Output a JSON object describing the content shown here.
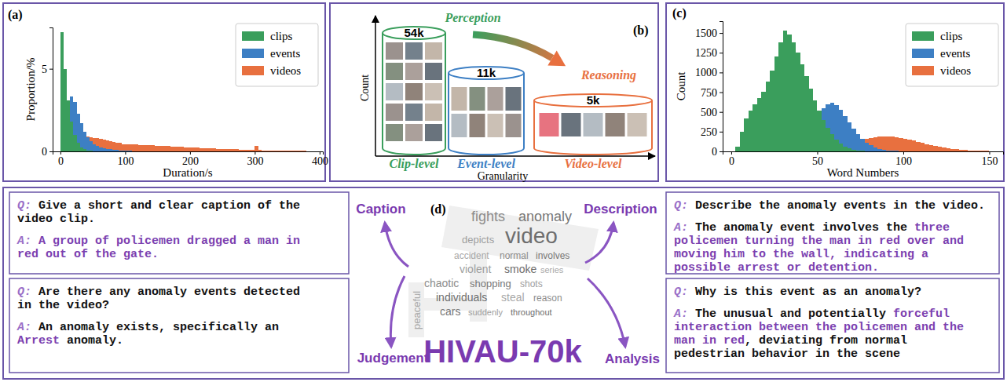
{
  "chart_data": [
    {
      "type": "histogram",
      "title": "(a)",
      "x_label": "Duration/s",
      "y_label": "Proportion/%",
      "bins": [
        0,
        5,
        10,
        15,
        20,
        25,
        30,
        35,
        40,
        45,
        50,
        55,
        60,
        65,
        70,
        75,
        80,
        85,
        90,
        95,
        100,
        105,
        110,
        115,
        120,
        125,
        130,
        135,
        140,
        145,
        150,
        155,
        160,
        165,
        170,
        175,
        180,
        185,
        190,
        195,
        200,
        205,
        210,
        215,
        220,
        225,
        230,
        235,
        240,
        245,
        250,
        255,
        260,
        265,
        270,
        275,
        280,
        285,
        290,
        295,
        300,
        305,
        310,
        315,
        320,
        325,
        330,
        335,
        340,
        345,
        350,
        355,
        360,
        365,
        370,
        375,
        380,
        385,
        390,
        395,
        400
      ],
      "series": [
        {
          "name": "clips",
          "color": "#3a9e5c",
          "values": [
            7.2,
            5.0,
            3.1,
            1.8,
            1.0,
            0.5,
            0.25,
            0.12,
            0.06,
            0.03,
            0,
            0,
            0,
            0,
            0,
            0,
            0,
            0,
            0,
            0,
            0,
            0,
            0,
            0,
            0,
            0,
            0,
            0,
            0,
            0,
            0,
            0,
            0,
            0,
            0,
            0,
            0,
            0,
            0,
            0,
            0,
            0,
            0,
            0,
            0,
            0,
            0,
            0,
            0,
            0,
            0,
            0,
            0,
            0,
            0,
            0,
            0,
            0,
            0,
            0,
            0,
            0,
            0,
            0,
            0,
            0,
            0,
            0,
            0,
            0,
            0,
            0,
            0,
            0,
            0,
            0,
            0,
            0,
            0,
            0
          ]
        },
        {
          "name": "events",
          "color": "#3d7fc4",
          "values": [
            0.2,
            1.5,
            2.6,
            3.3,
            3.0,
            2.3,
            1.7,
            1.2,
            0.85,
            0.6,
            0.45,
            0.35,
            0.25,
            0.2,
            0.15,
            0.12,
            0.1,
            0.08,
            0.06,
            0.05,
            0.04,
            0.03,
            0.02,
            0.02,
            0.01,
            0,
            0,
            0,
            0,
            0,
            0,
            0,
            0,
            0,
            0,
            0,
            0,
            0,
            0,
            0,
            0,
            0,
            0,
            0,
            0,
            0,
            0,
            0,
            0,
            0,
            0,
            0,
            0,
            0,
            0,
            0,
            0,
            0,
            0,
            0,
            0,
            0,
            0,
            0,
            0,
            0,
            0,
            0,
            0,
            0,
            0,
            0,
            0,
            0,
            0,
            0,
            0,
            0,
            0,
            0
          ]
        },
        {
          "name": "videos",
          "color": "#e8703f",
          "values": [
            0.1,
            0.3,
            0.6,
            0.8,
            0.9,
            1.0,
            1.0,
            0.95,
            0.9,
            0.85,
            0.8,
            0.8,
            0.75,
            0.7,
            0.65,
            0.6,
            0.55,
            0.5,
            0.5,
            0.45,
            0.44,
            0.43,
            0.42,
            0.41,
            0.4,
            0.39,
            0.38,
            0.37,
            0.36,
            0.35,
            0.34,
            0.33,
            0.32,
            0.31,
            0.3,
            0.29,
            0.28,
            0.27,
            0.26,
            0.25,
            0.24,
            0.23,
            0.22,
            0.21,
            0.2,
            0.19,
            0.18,
            0.17,
            0.16,
            0.15,
            0.15,
            0.14,
            0.13,
            0.12,
            0.12,
            0.11,
            0.1,
            0.1,
            0.09,
            0.09,
            0.35,
            0.08,
            0.07,
            0.07,
            0.06,
            0.06,
            0.05,
            0.05,
            0.05,
            0.04,
            0.04,
            0.04,
            0.03,
            0.03,
            0.03,
            0.03,
            0.02,
            0.02,
            0.02,
            0.02
          ]
        }
      ],
      "xlim": [
        -12,
        405
      ],
      "xticks": [
        0,
        100,
        200,
        300,
        400
      ],
      "ylim": [
        0,
        7.5
      ],
      "yticks": [
        0,
        5
      ],
      "legend": "upper right"
    },
    {
      "type": "histogram",
      "title": "(c)",
      "x_label": "Word Numbers",
      "y_label": "Count",
      "bins": [
        0,
        2.5,
        5,
        7.5,
        10,
        12.5,
        15,
        17.5,
        20,
        22.5,
        25,
        27.5,
        30,
        32.5,
        35,
        37.5,
        40,
        42.5,
        45,
        47.5,
        50,
        52.5,
        55,
        57.5,
        60,
        62.5,
        65,
        67.5,
        70,
        72.5,
        75,
        77.5,
        80,
        82.5,
        85,
        87.5,
        90,
        92.5,
        95,
        97.5,
        100,
        102.5,
        105,
        107.5,
        110,
        112.5,
        115,
        117.5,
        120,
        122.5,
        125,
        127.5,
        130,
        132.5,
        135,
        137.5,
        140,
        142.5,
        145,
        147.5,
        150,
        152.5,
        155,
        157.5
      ],
      "series": [
        {
          "name": "clips",
          "color": "#3a9e5c",
          "values": [
            0,
            60,
            250,
            420,
            520,
            600,
            680,
            760,
            880,
            1020,
            1200,
            1380,
            1530,
            1480,
            1380,
            1250,
            1100,
            950,
            800,
            650,
            520,
            400,
            300,
            220,
            150,
            100,
            60,
            35,
            20,
            10,
            5,
            0,
            0,
            0,
            0,
            0,
            0,
            0,
            0,
            0,
            0,
            0,
            0,
            0,
            0,
            0,
            0,
            0,
            0,
            0,
            0,
            0,
            0,
            0,
            0,
            0,
            0,
            0,
            0,
            0,
            0,
            0,
            0
          ]
        },
        {
          "name": "events",
          "color": "#3d7fc4",
          "values": [
            0,
            0,
            0,
            0,
            0,
            0,
            0,
            0,
            0,
            0,
            5,
            10,
            20,
            40,
            70,
            110,
            170,
            240,
            320,
            400,
            480,
            550,
            600,
            620,
            590,
            530,
            450,
            370,
            290,
            220,
            160,
            110,
            75,
            50,
            30,
            20,
            12,
            8,
            5,
            3,
            0,
            0,
            0,
            0,
            0,
            0,
            0,
            0,
            0,
            0,
            0,
            0,
            0,
            0,
            0,
            0,
            0,
            0,
            0,
            0,
            0,
            0,
            0
          ]
        },
        {
          "name": "videos",
          "color": "#e8703f",
          "values": [
            0,
            0,
            0,
            0,
            0,
            0,
            0,
            0,
            0,
            0,
            0,
            0,
            0,
            0,
            0,
            0,
            0,
            0,
            5,
            10,
            15,
            20,
            30,
            40,
            55,
            70,
            85,
            100,
            115,
            130,
            145,
            160,
            170,
            180,
            185,
            190,
            190,
            185,
            180,
            170,
            160,
            150,
            135,
            120,
            105,
            90,
            78,
            66,
            55,
            46,
            38,
            31,
            25,
            20,
            16,
            13,
            10,
            8,
            6,
            5,
            4,
            3,
            2
          ]
        }
      ],
      "xlim": [
        -5,
        158
      ],
      "xticks": [
        0,
        50,
        100,
        150
      ],
      "ylim": [
        0,
        1650
      ],
      "yticks": [
        0,
        250,
        500,
        750,
        1000,
        1250,
        1500
      ],
      "legend": "upper right"
    }
  ],
  "panel_b": {
    "title": "(b)",
    "y_label": "Count",
    "x_label": "Granularity",
    "arrow_start": "Perception",
    "arrow_end": "Reasoning",
    "levels": [
      {
        "label": "Clip-level",
        "count": "54k",
        "color": "#3a9e5c"
      },
      {
        "label": "Event-level",
        "count": "11k",
        "color": "#3d7fc4"
      },
      {
        "label": "Video-level",
        "count": "5k",
        "color": "#e8703f"
      }
    ]
  },
  "panel_d": {
    "title": "(d)",
    "name": "HIVAU-70k",
    "q_prefix": "Q:",
    "a_prefix": "A:",
    "qa": [
      {
        "task": "Caption",
        "question": [
          "Give a short and clear caption of the",
          "video clip."
        ],
        "answer": [
          [
            {
              "text": "A group of policemen dragged a man in",
              "color": "#7b3fb0"
            }
          ],
          [
            {
              "text": "red out of the gate.",
              "color": "#7b3fb0"
            }
          ]
        ]
      },
      {
        "task": "Judgement",
        "question": [
          "Are there any anomaly events detected",
          "in the video?"
        ],
        "answer": [
          [
            {
              "text": "An anomaly exists, specifically an"
            }
          ],
          [
            {
              "text": "Arrest",
              "color": "#7b3fb0"
            },
            {
              "text": " anomaly."
            }
          ]
        ]
      },
      {
        "task": "Description",
        "question": [
          "Describe the anomaly events in the video."
        ],
        "answer": [
          [
            {
              "text": "The anomaly event involves the "
            },
            {
              "text": "three",
              "color": "#7b3fb0"
            }
          ],
          [
            {
              "text": "policemen turning the man in red over and",
              "color": "#7b3fb0"
            }
          ],
          [
            {
              "text": "moving him to the wall, indicating a",
              "color": "#7b3fb0"
            }
          ],
          [
            {
              "text": "possible arrest or detention.",
              "color": "#7b3fb0"
            }
          ]
        ]
      },
      {
        "task": "Analysis",
        "question": [
          "Why is this event as an anomaly?"
        ],
        "answer": [
          [
            {
              "text": "The unusual and potentially "
            },
            {
              "text": "forceful",
              "color": "#7b3fb0"
            }
          ],
          [
            {
              "text": "interaction between the policemen and the",
              "color": "#7b3fb0"
            }
          ],
          [
            {
              "text": "man in red",
              "color": "#7b3fb0"
            },
            {
              "text": ", deviating from normal"
            }
          ],
          [
            {
              "text": "pedestrian behavior in the scene"
            }
          ]
        ]
      }
    ],
    "words": [
      "fights",
      "anomaly",
      "depicts",
      "video",
      "accident",
      "normal",
      "involves",
      "violent",
      "smoke",
      "series",
      "chaotic",
      "shopping",
      "shots",
      "individuals",
      "steal",
      "reason",
      "cars",
      "suddenly",
      "throughout",
      "peaceful"
    ]
  }
}
